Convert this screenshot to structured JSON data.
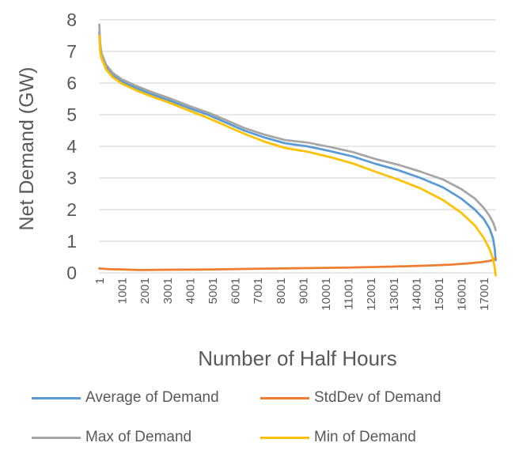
{
  "chart_data": {
    "type": "line",
    "title": "",
    "xlabel": "Number of Half Hours",
    "ylabel": "Net Demand (GW)",
    "x_range": [
      1,
      17520
    ],
    "ylim": [
      0,
      8
    ],
    "y_ticks": [
      0,
      1,
      2,
      3,
      4,
      5,
      6,
      7,
      8
    ],
    "x_ticks": [
      "1",
      "1001",
      "2001",
      "3001",
      "4001",
      "5001",
      "6001",
      "7001",
      "8001",
      "9001",
      "10001",
      "11001",
      "12001",
      "13001",
      "14001",
      "15001",
      "16001",
      "17001"
    ],
    "grid": "horizontal",
    "legend_position": "bottom",
    "colors": {
      "text": "#595959",
      "grid": "#D9D9D9",
      "background": "#FFFFFF"
    },
    "series": [
      {
        "name": "Average of Demand",
        "color": "#5B9BD5",
        "points": [
          [
            1,
            7.6
          ],
          [
            40,
            7.1
          ],
          [
            100,
            6.85
          ],
          [
            300,
            6.5
          ],
          [
            600,
            6.25
          ],
          [
            1000,
            6.05
          ],
          [
            1600,
            5.85
          ],
          [
            2300,
            5.65
          ],
          [
            3100,
            5.45
          ],
          [
            4000,
            5.2
          ],
          [
            4800,
            5.0
          ],
          [
            5600,
            4.75
          ],
          [
            6400,
            4.5
          ],
          [
            7300,
            4.28
          ],
          [
            8200,
            4.1
          ],
          [
            9200,
            4.0
          ],
          [
            10200,
            3.85
          ],
          [
            11200,
            3.68
          ],
          [
            12200,
            3.45
          ],
          [
            13200,
            3.25
          ],
          [
            14200,
            3.0
          ],
          [
            15200,
            2.7
          ],
          [
            16000,
            2.35
          ],
          [
            16600,
            2.0
          ],
          [
            17000,
            1.7
          ],
          [
            17250,
            1.4
          ],
          [
            17400,
            1.1
          ],
          [
            17480,
            0.75
          ],
          [
            17520,
            0.4
          ]
        ]
      },
      {
        "name": "StdDev of Demand",
        "color": "#ED7D31",
        "points": [
          [
            1,
            0.14
          ],
          [
            400,
            0.12
          ],
          [
            1000,
            0.11
          ],
          [
            1800,
            0.09
          ],
          [
            3000,
            0.1
          ],
          [
            5000,
            0.11
          ],
          [
            7000,
            0.13
          ],
          [
            9000,
            0.15
          ],
          [
            11000,
            0.17
          ],
          [
            13000,
            0.2
          ],
          [
            14500,
            0.23
          ],
          [
            15500,
            0.26
          ],
          [
            16300,
            0.3
          ],
          [
            16900,
            0.34
          ],
          [
            17250,
            0.38
          ],
          [
            17450,
            0.42
          ],
          [
            17520,
            0.46
          ]
        ]
      },
      {
        "name": "Max of Demand",
        "color": "#A6A6A6",
        "points": [
          [
            1,
            7.85
          ],
          [
            40,
            7.25
          ],
          [
            100,
            6.95
          ],
          [
            300,
            6.58
          ],
          [
            600,
            6.32
          ],
          [
            1000,
            6.12
          ],
          [
            1600,
            5.92
          ],
          [
            2300,
            5.72
          ],
          [
            3100,
            5.52
          ],
          [
            4000,
            5.27
          ],
          [
            4800,
            5.07
          ],
          [
            5600,
            4.83
          ],
          [
            6400,
            4.58
          ],
          [
            7300,
            4.37
          ],
          [
            8200,
            4.2
          ],
          [
            9200,
            4.12
          ],
          [
            10200,
            3.98
          ],
          [
            11200,
            3.82
          ],
          [
            12200,
            3.6
          ],
          [
            13200,
            3.42
          ],
          [
            14200,
            3.2
          ],
          [
            15200,
            2.95
          ],
          [
            16000,
            2.65
          ],
          [
            16600,
            2.35
          ],
          [
            17000,
            2.05
          ],
          [
            17250,
            1.8
          ],
          [
            17400,
            1.6
          ],
          [
            17480,
            1.45
          ],
          [
            17520,
            1.35
          ]
        ]
      },
      {
        "name": "Min of Demand",
        "color": "#FFC000",
        "points": [
          [
            1,
            7.5
          ],
          [
            40,
            7.0
          ],
          [
            100,
            6.78
          ],
          [
            300,
            6.43
          ],
          [
            600,
            6.18
          ],
          [
            1000,
            5.98
          ],
          [
            1600,
            5.78
          ],
          [
            2300,
            5.58
          ],
          [
            3100,
            5.38
          ],
          [
            4000,
            5.12
          ],
          [
            4800,
            4.9
          ],
          [
            5600,
            4.65
          ],
          [
            6400,
            4.4
          ],
          [
            7300,
            4.15
          ],
          [
            8200,
            3.95
          ],
          [
            9200,
            3.83
          ],
          [
            10200,
            3.66
          ],
          [
            11200,
            3.46
          ],
          [
            12200,
            3.2
          ],
          [
            13200,
            2.95
          ],
          [
            14200,
            2.67
          ],
          [
            15200,
            2.3
          ],
          [
            16000,
            1.9
          ],
          [
            16600,
            1.5
          ],
          [
            17000,
            1.1
          ],
          [
            17250,
            0.75
          ],
          [
            17400,
            0.45
          ],
          [
            17480,
            0.15
          ],
          [
            17520,
            -0.08
          ]
        ]
      }
    ]
  }
}
